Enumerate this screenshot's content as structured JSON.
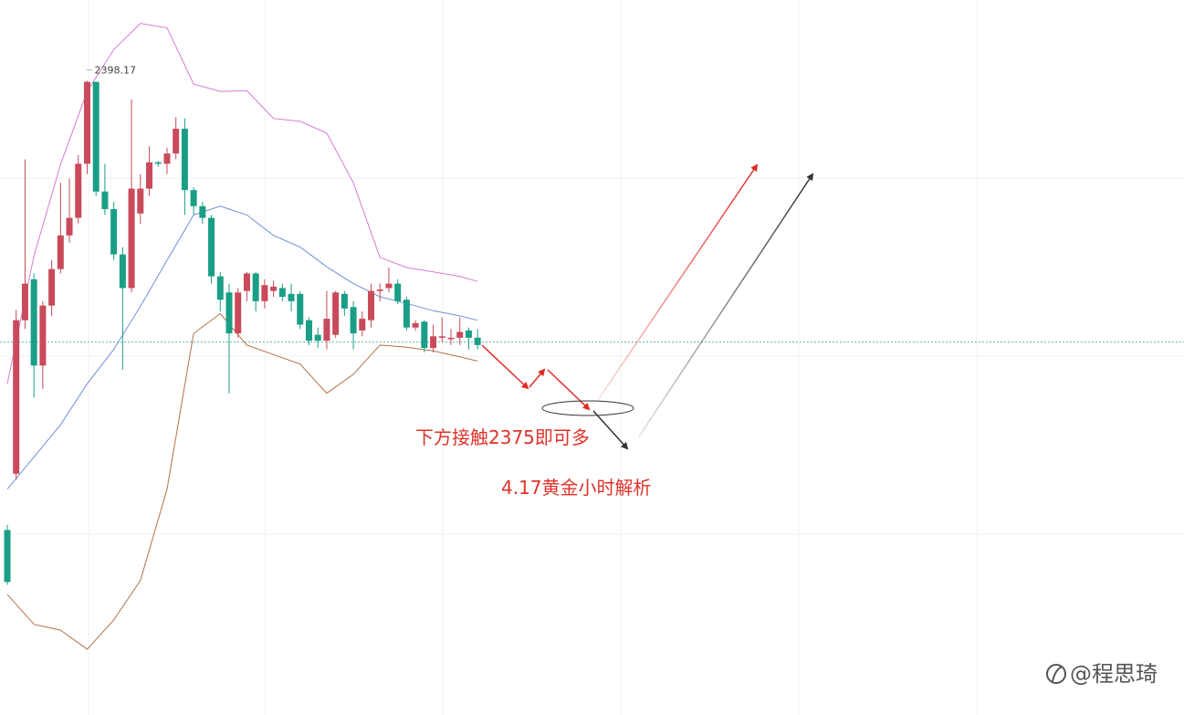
{
  "chart_data": {
    "type": "candlestick",
    "up_color": "#c94a5a",
    "down_color": "#1a9e86",
    "ylim": [
      2354.8,
      2403.7
    ],
    "open": [
      2367.45,
      2371.3,
      2381.8,
      2384.6,
      2378.7,
      2382.8,
      2385.3,
      2387.6,
      2388.8,
      2392.5,
      2398.1,
      2390.6,
      2389.4,
      2386.3,
      2384.0,
      2389.1,
      2390.8,
      2392.6,
      2392.5,
      2393.2,
      2394.9,
      2390.7,
      2389.6,
      2388.8,
      2384.8,
      2383.7,
      2380.9,
      2383.8,
      2385.0,
      2383.1,
      2383.8,
      2384.0,
      2383.6,
      2383.6,
      2381.8,
      2380.8,
      2380.4,
      2380.8,
      2383.6,
      2382.7,
      2381.1,
      2381.8,
      2383.8,
      2384.0,
      2384.3,
      2383.2,
      2381.3,
      2381.7,
      2379.9,
      2380.6,
      2380.5,
      2380.6,
      2381.1,
      2380.6
    ],
    "high": [
      2367.8,
      2382.5,
      2392.8,
      2385.0,
      2383.1,
      2385.9,
      2391.2,
      2391.5,
      2393.1,
      2398.17,
      2398.1,
      2392.5,
      2389.9,
      2386.8,
      2396.9,
      2391.8,
      2393.7,
      2392.7,
      2393.6,
      2395.7,
      2395.6,
      2390.9,
      2389.9,
      2389.0,
      2385.1,
      2384.3,
      2384.0,
      2385.1,
      2385.1,
      2384.6,
      2384.5,
      2384.3,
      2384.3,
      2383.8,
      2382.0,
      2381.3,
      2383.8,
      2383.8,
      2383.8,
      2383.1,
      2382.4,
      2384.3,
      2384.3,
      2385.4,
      2384.6,
      2383.4,
      2381.8,
      2381.8,
      2381.5,
      2382.0,
      2381.2,
      2382.0,
      2381.3,
      2381.2
    ],
    "low": [
      2363.7,
      2370.9,
      2381.2,
      2376.5,
      2377.1,
      2382.1,
      2385.0,
      2387.1,
      2388.4,
      2391.8,
      2390.3,
      2389.0,
      2385.9,
      2378.4,
      2383.7,
      2388.4,
      2390.3,
      2392.3,
      2391.8,
      2392.8,
      2389.0,
      2389.0,
      2388.4,
      2384.3,
      2382.4,
      2376.8,
      2380.6,
      2383.1,
      2382.4,
      2382.6,
      2383.4,
      2383.1,
      2382.4,
      2381.2,
      2380.1,
      2379.9,
      2379.8,
      2380.6,
      2382.1,
      2379.8,
      2380.7,
      2381.3,
      2383.1,
      2383.7,
      2382.9,
      2381.1,
      2381.1,
      2379.6,
      2379.6,
      2380.3,
      2380.1,
      2380.1,
      2379.8,
      2379.8
    ],
    "close": [
      2363.9,
      2381.8,
      2384.3,
      2378.7,
      2382.8,
      2385.3,
      2387.6,
      2388.8,
      2392.5,
      2398.1,
      2390.6,
      2389.4,
      2386.3,
      2384.0,
      2390.8,
      2390.8,
      2392.6,
      2392.5,
      2393.2,
      2394.9,
      2390.7,
      2389.6,
      2388.8,
      2384.8,
      2383.2,
      2380.9,
      2383.7,
      2385.0,
      2383.1,
      2384.2,
      2384.1,
      2383.4,
      2383.1,
      2381.5,
      2380.4,
      2380.4,
      2381.9,
      2383.7,
      2382.6,
      2380.9,
      2381.9,
      2383.8,
      2383.9,
      2384.3,
      2383.1,
      2381.3,
      2381.6,
      2379.9,
      2380.7,
      2380.7,
      2380.6,
      2381.0,
      2380.6,
      2380.1
    ],
    "max_label": "2398.17",
    "bands": [
      {
        "color": "#d77ad0",
        "x": [
          0,
          3,
          6,
          9,
          12,
          15,
          18,
          21,
          24,
          27,
          30,
          33,
          36,
          39,
          42,
          45,
          48,
          51,
          53
        ],
        "values": [
          2377.45,
          2386.2,
          2392.45,
          2397.45,
          2400.3,
          2402.1,
          2401.8,
          2397.95,
          2397.45,
          2397.5,
          2395.6,
          2395.4,
          2394.6,
          2391.2,
          2386.1,
          2385.4,
          2385.1,
          2384.8,
          2384.45
        ]
      },
      {
        "color": "#6f8fd6",
        "x": [
          0,
          3,
          6,
          9,
          12,
          15,
          18,
          21,
          24,
          27,
          30,
          33,
          36,
          39,
          42,
          45,
          48,
          51,
          53
        ],
        "values": [
          2370.25,
          2372.45,
          2374.65,
          2377.45,
          2379.8,
          2382.75,
          2385.9,
          2389.0,
          2389.6,
          2389.0,
          2387.6,
          2386.8,
          2385.45,
          2384.3,
          2383.4,
          2382.95,
          2382.45,
          2382.1,
          2381.8
        ]
      },
      {
        "color": "#b2704c",
        "x": [
          0,
          3,
          6,
          9,
          12,
          15,
          18,
          21,
          24,
          27,
          30,
          33,
          36,
          39,
          42,
          45,
          48,
          51,
          53
        ],
        "values": [
          2363.05,
          2361.0,
          2360.6,
          2359.3,
          2361.3,
          2364.0,
          2370.25,
          2380.9,
          2382.25,
          2380.1,
          2379.45,
          2378.8,
          2376.8,
          2378.1,
          2380.1,
          2379.95,
          2379.7,
          2379.3,
          2379.0
        ]
      }
    ],
    "price_line": 2380.3,
    "price_line_color": "#5fb8a8",
    "annotations": [
      "下方接触2375即可多",
      "4.17黄金小时解析"
    ],
    "watermark": "@程思琦"
  }
}
